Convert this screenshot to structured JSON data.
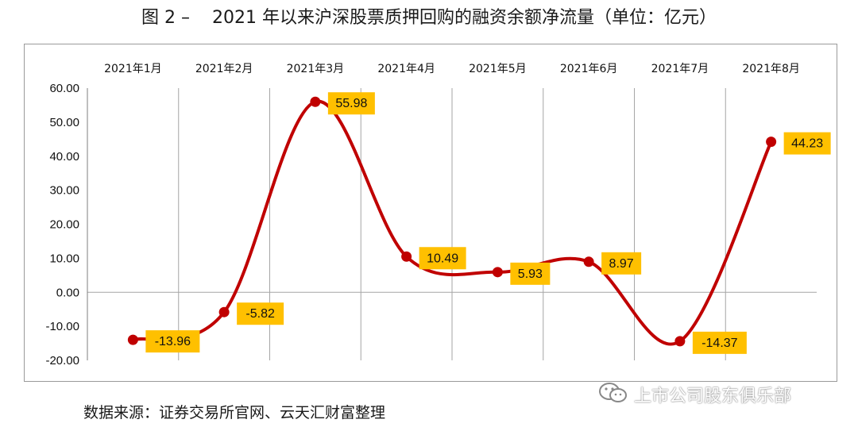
{
  "title": "图 2 –    2021 年以来沪深股票质押回购的融资余额净流量（单位：亿元）",
  "source": "数据来源：证券交易所官网、云天汇财富整理",
  "watermark": "上市公司股东俱乐部",
  "colors": {
    "line": "#c00000",
    "label_bg": "#ffc000",
    "grid": "#a6a6a6"
  },
  "chart_data": {
    "type": "line",
    "categories": [
      "2021年1月",
      "2021年2月",
      "2021年3月",
      "2021年4月",
      "2021年5月",
      "2021年6月",
      "2021年7月",
      "2021年8月"
    ],
    "values": [
      -13.96,
      -5.82,
      55.98,
      10.49,
      5.93,
      8.97,
      -14.37,
      44.23
    ],
    "data_labels": [
      "-13.96",
      "-5.82",
      "55.98",
      "10.49",
      "5.93",
      "8.97",
      "-14.37",
      "44.23"
    ],
    "y_ticks": [
      "60.00",
      "50.00",
      "40.00",
      "30.00",
      "20.00",
      "10.00",
      "0.00",
      "-10.00",
      "-20.00"
    ],
    "ylim": [
      -20,
      60
    ],
    "smooth": true,
    "grid": "vertical",
    "x_axis_position": "top"
  }
}
